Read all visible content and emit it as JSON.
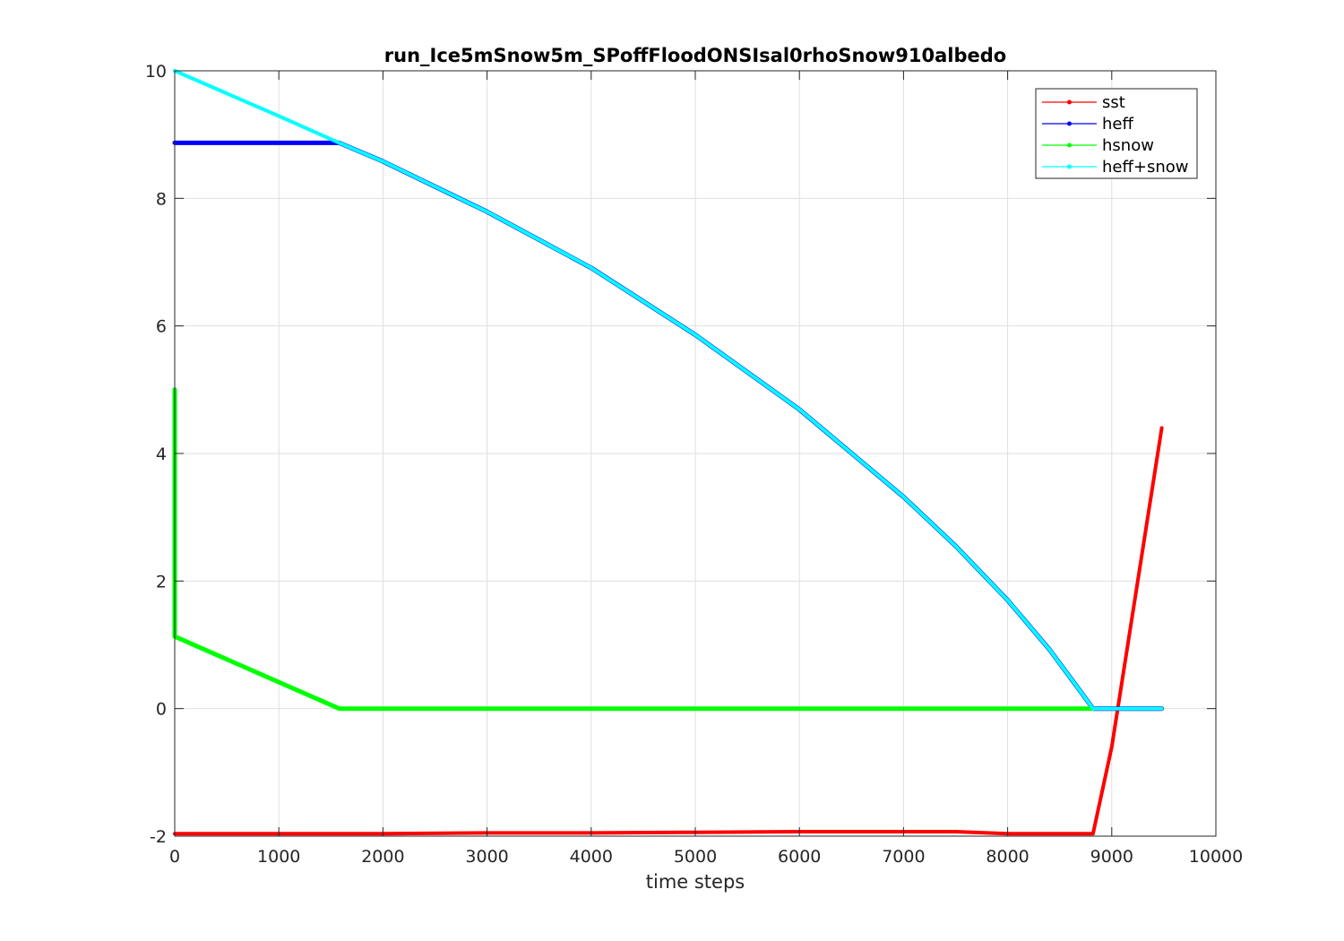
{
  "chart_data": {
    "type": "line",
    "title": "run_Ice5mSnow5m_SPoffFloodONSIsal0rhoSnow910albedo",
    "xlabel": "time steps",
    "ylabel": "",
    "xlim": [
      0,
      10000
    ],
    "ylim": [
      -2,
      10
    ],
    "xticks": [
      "0",
      "1000",
      "2000",
      "3000",
      "4000",
      "5000",
      "6000",
      "7000",
      "8000",
      "9000",
      "10000"
    ],
    "yticks": [
      "-2",
      "0",
      "2",
      "4",
      "6",
      "8",
      "10"
    ],
    "grid": true,
    "legend_position": "top-right",
    "series": [
      {
        "name": "sst",
        "color": "#ff0000",
        "width": 4,
        "x": [
          0,
          1000,
          2000,
          3000,
          4000,
          5000,
          6000,
          7000,
          7500,
          8000,
          8820,
          9000,
          9480
        ],
        "y": [
          -1.96,
          -1.96,
          -1.96,
          -1.95,
          -1.95,
          -1.94,
          -1.93,
          -1.93,
          -1.93,
          -1.96,
          -1.96,
          -0.6,
          4.4
        ]
      },
      {
        "name": "heff",
        "color": "#0000ff",
        "width": 5,
        "x": [
          0,
          1580,
          2000,
          3000,
          4000,
          5000,
          6000,
          7000,
          7500,
          8000,
          8400,
          8700,
          8820,
          9480
        ],
        "y": [
          8.87,
          8.87,
          8.58,
          7.79,
          6.91,
          5.86,
          4.69,
          3.32,
          2.55,
          1.7,
          0.93,
          0.27,
          0,
          0
        ]
      },
      {
        "name": "hsnow",
        "color": "#00ff00",
        "width": 5,
        "x": [
          0,
          0,
          1580,
          8820
        ],
        "y": [
          5.0,
          1.13,
          0,
          0
        ]
      },
      {
        "name": "heff+snow",
        "color": "#00ffff",
        "width": 4,
        "x": [
          0,
          1000,
          1580,
          2000,
          3000,
          4000,
          5000,
          6000,
          7000,
          7500,
          8000,
          8400,
          8700,
          8820,
          9480
        ],
        "y": [
          10.0,
          9.29,
          8.87,
          8.58,
          7.79,
          6.91,
          5.86,
          4.69,
          3.32,
          2.55,
          1.7,
          0.93,
          0.27,
          0,
          0
        ]
      }
    ]
  }
}
